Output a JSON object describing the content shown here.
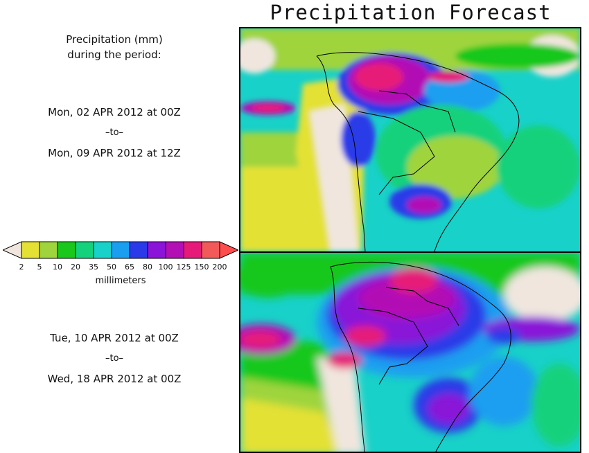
{
  "title": "Precipitation Forecast",
  "header": {
    "line1": "Precipitation (mm)",
    "line2": "during the period:"
  },
  "period1": {
    "start": "Mon, 02 APR 2012 at 00Z",
    "sep": "–to–",
    "end": "Mon, 09 APR 2012 at 12Z"
  },
  "period2": {
    "start": "Tue, 10 APR 2012 at 00Z",
    "sep": "–to–",
    "end": "Wed, 18 APR 2012 at 00Z"
  },
  "legend": {
    "units": "millimeters",
    "ticks": [
      "2",
      "5",
      "10",
      "20",
      "35",
      "50",
      "65",
      "80",
      "100",
      "125",
      "150",
      "200"
    ],
    "colors": [
      "#e4e134",
      "#9fd43d",
      "#19c81b",
      "#14d17b",
      "#18d1c8",
      "#1a9ff0",
      "#2b3ae8",
      "#8a14d8",
      "#b20fb5",
      "#e61a78",
      "#f25a5a"
    ],
    "under_color": "#f0e6de",
    "over_color": "#ff4d4d"
  }
}
